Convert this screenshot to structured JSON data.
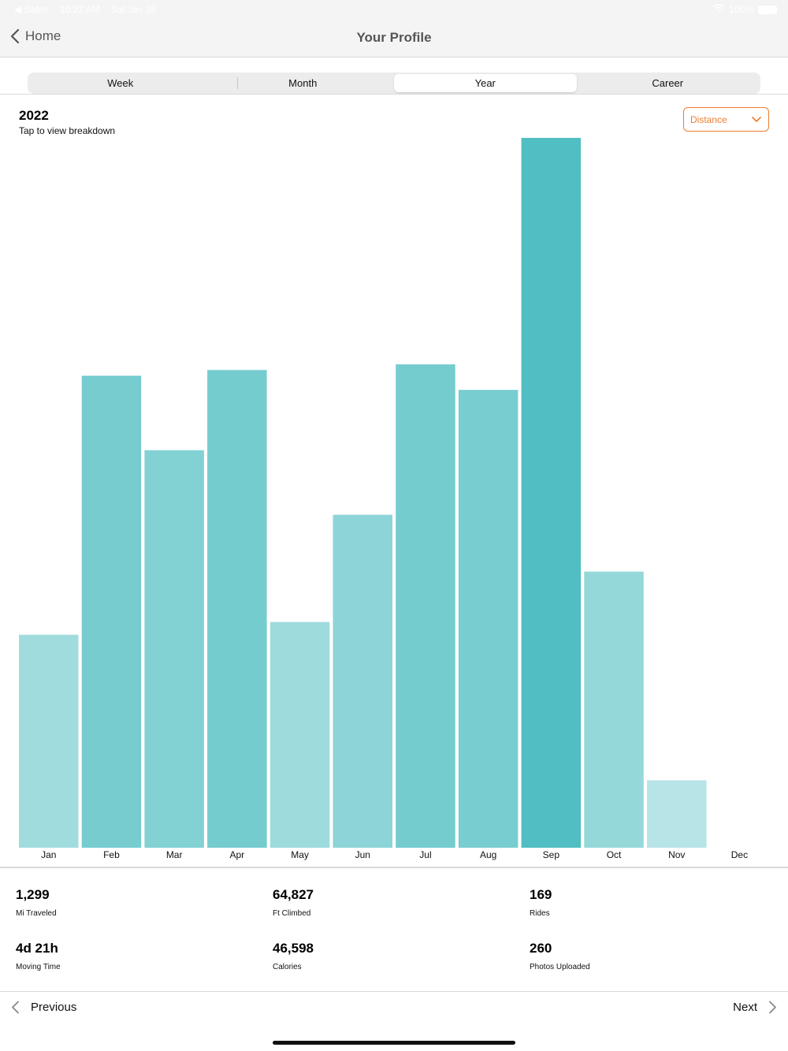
{
  "status_bar": {
    "app": "◀ Safari",
    "time": "10:22 AM",
    "date": "Sat Jan 28",
    "battery": "100%"
  },
  "nav": {
    "back_label": "Home",
    "title": "Your Profile"
  },
  "segments": {
    "tabs": [
      "Week",
      "Month",
      "Year",
      "Career"
    ],
    "selected": "Year"
  },
  "header": {
    "year": "2022",
    "subtitle": "Tap to view breakdown"
  },
  "metric_select": {
    "value": "Distance",
    "accent_color": "#f07b2e"
  },
  "chart_data": {
    "type": "bar",
    "categories": [
      "Jan",
      "Feb",
      "Mar",
      "Apr",
      "May",
      "Jun",
      "Jul",
      "Aug",
      "Sep",
      "Oct",
      "Nov",
      "Dec"
    ],
    "values": [
      30,
      66.5,
      56,
      67.3,
      31.8,
      46.9,
      68.1,
      64.5,
      100,
      38.9,
      9.5,
      0
    ],
    "ylim": [
      0,
      100
    ],
    "bar_color": "#50bec2",
    "grid": false,
    "axis_labels_shown": false
  },
  "stats": [
    {
      "value": "1,299",
      "label": "Mi Traveled"
    },
    {
      "value": "64,827",
      "label": "Ft Climbed"
    },
    {
      "value": "169",
      "label": "Rides"
    },
    {
      "value": "4d 21h",
      "label": "Moving Time"
    },
    {
      "value": "46,598",
      "label": "Calories"
    },
    {
      "value": "260",
      "label": "Photos Uploaded"
    }
  ],
  "pager": {
    "previous_label": "Previous",
    "next_label": "Next"
  }
}
